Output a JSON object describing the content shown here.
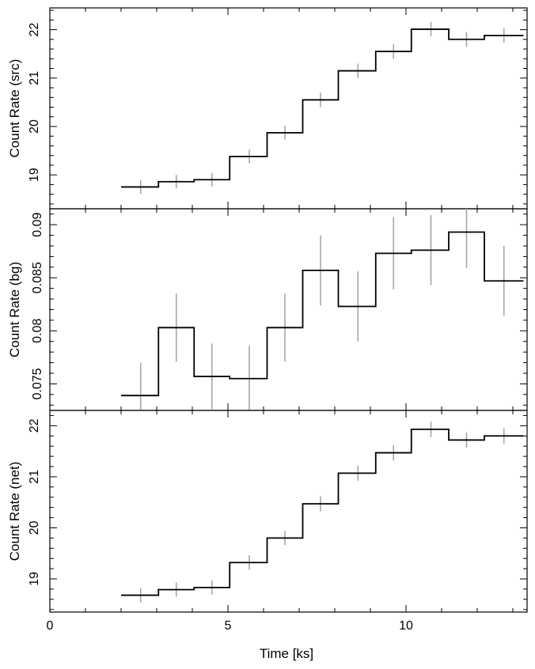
{
  "chart_data": {
    "type": "line",
    "xlabel": "Time [ks]",
    "xlim": [
      0,
      13.4
    ],
    "x_ticks": [
      0,
      5,
      10
    ],
    "x_tick_labels": [
      "0",
      "5",
      "10"
    ],
    "bin_edges": [
      2.0,
      3.05,
      4.05,
      5.05,
      6.1,
      7.1,
      8.1,
      9.15,
      10.15,
      11.2,
      12.2,
      13.3
    ],
    "bin_centers": [
      2.55,
      3.55,
      4.55,
      5.6,
      6.6,
      7.6,
      8.65,
      9.65,
      10.7,
      11.7,
      12.75
    ],
    "colors": {
      "step": "#000000",
      "errorbar": "#a6a6a6",
      "frame": "#000000"
    },
    "panels": [
      {
        "name": "src",
        "ylabel": "Count Rate (src)",
        "ylim": [
          18.3,
          22.45
        ],
        "y_ticks": [
          19,
          20,
          21,
          22
        ],
        "y_tick_labels": [
          "19",
          "20",
          "21",
          "22"
        ],
        "y_tick_rotated": false,
        "values": [
          18.75,
          18.86,
          18.9,
          19.38,
          19.87,
          20.55,
          21.15,
          21.55,
          22.01,
          21.8,
          21.88
        ],
        "errors": [
          0.14,
          0.14,
          0.14,
          0.14,
          0.14,
          0.15,
          0.15,
          0.15,
          0.15,
          0.15,
          0.15
        ]
      },
      {
        "name": "bg",
        "ylabel": "Count Rate (bg)",
        "ylim": [
          0.0725,
          0.0915
        ],
        "y_ticks": [
          0.075,
          0.08,
          0.085,
          0.09
        ],
        "y_tick_labels": [
          "0.075",
          "0.08",
          "0.085",
          "0.09"
        ],
        "y_tick_rotated": true,
        "values": [
          0.0739,
          0.0803,
          0.0757,
          0.0755,
          0.0803,
          0.0857,
          0.0823,
          0.0873,
          0.0876,
          0.0893,
          0.0847
        ],
        "errors": [
          0.0031,
          0.0032,
          0.0031,
          0.0031,
          0.0032,
          0.0033,
          0.0033,
          0.0034,
          0.0033,
          0.0034,
          0.0033
        ]
      },
      {
        "name": "net",
        "ylabel": "Count Rate (net)",
        "ylim": [
          18.35,
          22.3
        ],
        "y_ticks": [
          19,
          20,
          21,
          22
        ],
        "y_tick_labels": [
          "19",
          "20",
          "21",
          "22"
        ],
        "y_tick_rotated": false,
        "values": [
          18.68,
          18.79,
          18.83,
          19.32,
          19.8,
          20.47,
          21.07,
          21.47,
          21.93,
          21.72,
          21.8
        ],
        "errors": [
          0.14,
          0.14,
          0.14,
          0.14,
          0.14,
          0.15,
          0.15,
          0.15,
          0.15,
          0.15,
          0.15
        ]
      }
    ]
  }
}
